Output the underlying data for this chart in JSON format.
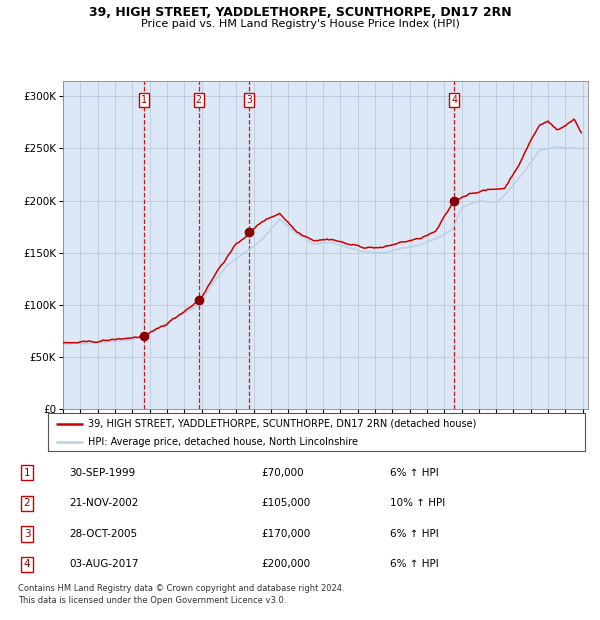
{
  "title1": "39, HIGH STREET, YADDLETHORPE, SCUNTHORPE, DN17 2RN",
  "title2": "Price paid vs. HM Land Registry's House Price Index (HPI)",
  "legend_line1": "39, HIGH STREET, YADDLETHORPE, SCUNTHORPE, DN17 2RN (detached house)",
  "legend_line2": "HPI: Average price, detached house, North Lincolnshire",
  "transactions": [
    {
      "num": 1,
      "date": "30-SEP-1999",
      "price": 70000,
      "pct": "6%",
      "dir": "↑"
    },
    {
      "num": 2,
      "date": "21-NOV-2002",
      "price": 105000,
      "pct": "10%",
      "dir": "↑"
    },
    {
      "num": 3,
      "date": "28-OCT-2005",
      "price": 170000,
      "pct": "6%",
      "dir": "↑"
    },
    {
      "num": 4,
      "date": "03-AUG-2017",
      "price": 200000,
      "pct": "6%",
      "dir": "↑"
    }
  ],
  "footer1": "Contains HM Land Registry data © Crown copyright and database right 2024.",
  "footer2": "This data is licensed under the Open Government Licence v3.0.",
  "hpi_color": "#b8d0e8",
  "property_color": "#cc0000",
  "dot_color": "#880000",
  "background_color": "#dce8f5",
  "grid_color": "#b0b8cc",
  "vline_color": "#cc0000",
  "ylabel_values": [
    0,
    50000,
    100000,
    150000,
    200000,
    250000,
    300000
  ],
  "ylim": [
    0,
    315000
  ],
  "start_year": 1995,
  "end_year": 2025
}
